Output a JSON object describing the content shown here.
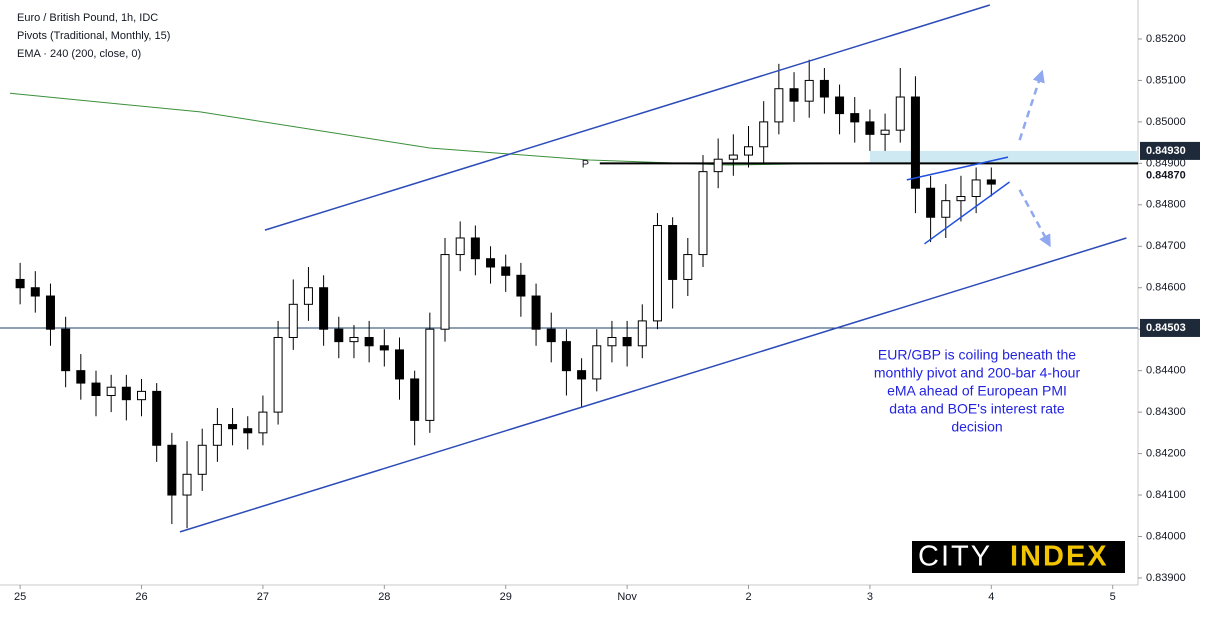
{
  "chart_data": {
    "type": "candlestick",
    "title": "Euro / British Pound, 1h, IDC",
    "subtitle": "Pivots (Traditional, Monthly, 15)",
    "xlim": [
      -2,
      221
    ],
    "ylim": [
      0.83883,
      0.85294
    ],
    "xticks": [
      {
        "value": 0,
        "label": "25"
      },
      {
        "value": 24,
        "label": "26"
      },
      {
        "value": 48,
        "label": "27"
      },
      {
        "value": 72,
        "label": "28"
      },
      {
        "value": 96,
        "label": "29"
      },
      {
        "value": 120,
        "label": "Nov"
      },
      {
        "value": 144,
        "label": "2"
      },
      {
        "value": 168,
        "label": "3"
      },
      {
        "value": 192,
        "label": "4"
      },
      {
        "value": 216,
        "label": "5"
      }
    ],
    "yticks": [
      {
        "value": 0.852,
        "label": "0.85200"
      },
      {
        "value": 0.851,
        "label": "0.85100"
      },
      {
        "value": 0.85,
        "label": "0.85000"
      },
      {
        "value": 0.849,
        "label": "0.84900"
      },
      {
        "value": 0.848,
        "label": "0.84800"
      },
      {
        "value": 0.847,
        "label": "0.84700"
      },
      {
        "value": 0.846,
        "label": "0.84600"
      },
      {
        "value": 0.845,
        "label": "0.84500"
      },
      {
        "value": 0.844,
        "label": "0.84400"
      },
      {
        "value": 0.843,
        "label": "0.84300"
      },
      {
        "value": 0.842,
        "label": "0.84200"
      },
      {
        "value": 0.841,
        "label": "0.84100"
      },
      {
        "value": 0.84,
        "label": "0.84000"
      },
      {
        "value": 0.839,
        "label": "0.83900"
      }
    ],
    "x": [
      0,
      3,
      6,
      9,
      12,
      15,
      18,
      21,
      24,
      27,
      30,
      33,
      36,
      39,
      42,
      45,
      48,
      51,
      54,
      57,
      60,
      63,
      66,
      69,
      72,
      75,
      78,
      81,
      84,
      87,
      90,
      93,
      96,
      99,
      102,
      105,
      108,
      111,
      114,
      117,
      120,
      123,
      126,
      129,
      132,
      135,
      138,
      141,
      144,
      147,
      150,
      153,
      156,
      159,
      162,
      165,
      168,
      171,
      174,
      177,
      180,
      183,
      186,
      189,
      192
    ],
    "open": [
      0.8462,
      0.846,
      0.8458,
      0.845,
      0.844,
      0.8437,
      0.8434,
      0.8436,
      0.8433,
      0.8435,
      0.8422,
      0.841,
      0.8415,
      0.8422,
      0.8427,
      0.8426,
      0.8425,
      0.843,
      0.8448,
      0.8456,
      0.846,
      0.845,
      0.8447,
      0.8448,
      0.8446,
      0.8445,
      0.8438,
      0.8428,
      0.845,
      0.8468,
      0.8472,
      0.8467,
      0.8465,
      0.8463,
      0.8458,
      0.845,
      0.8447,
      0.844,
      0.8438,
      0.8446,
      0.8448,
      0.8446,
      0.8452,
      0.8475,
      0.8462,
      0.8468,
      0.8488,
      0.8491,
      0.8492,
      0.8494,
      0.85,
      0.8508,
      0.8505,
      0.851,
      0.8506,
      0.8502,
      0.85,
      0.8497,
      0.8498,
      0.8506,
      0.8484,
      0.8477,
      0.8481,
      0.8482,
      0.8486
    ],
    "high": [
      0.8466,
      0.8464,
      0.8461,
      0.8453,
      0.8444,
      0.844,
      0.8439,
      0.8439,
      0.8438,
      0.8437,
      0.8425,
      0.8423,
      0.8426,
      0.8431,
      0.8431,
      0.8429,
      0.8434,
      0.8452,
      0.8462,
      0.8465,
      0.8463,
      0.8453,
      0.8451,
      0.8452,
      0.845,
      0.8448,
      0.844,
      0.8454,
      0.8472,
      0.8476,
      0.8475,
      0.847,
      0.8468,
      0.8466,
      0.8461,
      0.8454,
      0.845,
      0.8443,
      0.845,
      0.8452,
      0.8452,
      0.8456,
      0.8478,
      0.8477,
      0.8472,
      0.8492,
      0.8496,
      0.8497,
      0.8499,
      0.8505,
      0.8514,
      0.8512,
      0.8515,
      0.8513,
      0.8509,
      0.8506,
      0.8503,
      0.8502,
      0.8513,
      0.8511,
      0.8487,
      0.8485,
      0.8487,
      0.8489,
      0.8489
    ],
    "low": [
      0.8456,
      0.8454,
      0.8446,
      0.8436,
      0.8433,
      0.8429,
      0.843,
      0.8428,
      0.8429,
      0.8418,
      0.8403,
      0.8402,
      0.8411,
      0.8418,
      0.8422,
      0.8421,
      0.8422,
      0.8427,
      0.8445,
      0.8452,
      0.8446,
      0.8443,
      0.8443,
      0.8442,
      0.8441,
      0.8433,
      0.8422,
      0.8425,
      0.8447,
      0.8464,
      0.8463,
      0.8461,
      0.8459,
      0.8453,
      0.8446,
      0.8442,
      0.8434,
      0.8431,
      0.8435,
      0.8442,
      0.8441,
      0.8443,
      0.845,
      0.8455,
      0.8458,
      0.8465,
      0.8484,
      0.8487,
      0.8489,
      0.849,
      0.8497,
      0.85,
      0.8501,
      0.8502,
      0.8497,
      0.8495,
      0.8493,
      0.8493,
      0.8495,
      0.8478,
      0.8471,
      0.8472,
      0.8476,
      0.8478,
      0.8482
    ],
    "close": [
      0.846,
      0.8458,
      0.845,
      0.844,
      0.8437,
      0.8434,
      0.8436,
      0.8433,
      0.8435,
      0.8422,
      0.841,
      0.8415,
      0.8422,
      0.8427,
      0.8426,
      0.8425,
      0.843,
      0.8448,
      0.8456,
      0.846,
      0.845,
      0.8447,
      0.8448,
      0.8446,
      0.8445,
      0.8438,
      0.8428,
      0.845,
      0.8468,
      0.8472,
      0.8467,
      0.8465,
      0.8463,
      0.8458,
      0.845,
      0.8447,
      0.844,
      0.8438,
      0.8446,
      0.8448,
      0.8446,
      0.8452,
      0.8475,
      0.8462,
      0.8468,
      0.8488,
      0.8491,
      0.8492,
      0.8494,
      0.85,
      0.8508,
      0.8505,
      0.851,
      0.8506,
      0.8502,
      0.85,
      0.8497,
      0.8498,
      0.8506,
      0.8484,
      0.8477,
      0.8481,
      0.8482,
      0.8486,
      0.8485
    ],
    "ema": {
      "name": "EMA · 240 (200, close, 0)",
      "color": "#3a8f3a",
      "x": [
        -2,
        35.6,
        81,
        112.6,
        140,
        168
      ],
      "values": [
        0.85069,
        0.85024,
        0.84937,
        0.84908,
        0.84896,
        0.84901
      ]
    },
    "lines": [
      {
        "color": "#2b4bb8",
        "x": [
          48.4,
          191.7
        ],
        "values": [
          0.84739,
          0.85282
        ]
      },
      {
        "color": "#2b4bb8",
        "x": [
          31.6,
          218.7
        ],
        "values": [
          0.84011,
          0.8472
        ]
      },
      {
        "color": "#1f4fe0",
        "x": [
          175.3,
          195.3
        ],
        "values": [
          0.8486,
          0.84915
        ]
      },
      {
        "color": "#1f4fe0",
        "x": [
          178.8,
          195.6
        ],
        "values": [
          0.84706,
          0.84855
        ]
      },
      {
        "color": "#8fa8f0",
        "dashed": true,
        "x": [
          197.6,
          202
        ],
        "values": [
          0.84956,
          0.8512
        ]
      },
      {
        "color": "#8fa8f0",
        "dashed": true,
        "x": [
          197.6,
          203.5
        ],
        "values": [
          0.84836,
          0.84703
        ]
      }
    ],
    "pivot": {
      "name": "P",
      "value": 0.849,
      "x_start": 114.6
    },
    "zone": {
      "x_start": 168,
      "range": [
        0.849,
        0.8493
      ],
      "tag": {
        "value": 0.8493,
        "label": "0.84930"
      }
    },
    "level": {
      "value": 0.84503,
      "label": "0.84503"
    },
    "last_price": {
      "value": 0.8487,
      "label": "0.84870"
    },
    "annotation": [
      "EUR/GBP is coiling beneath the",
      "monthly pivot and 200-bar 4-hour",
      "eMA ahead of European PMI",
      "data and BOE's interest rate",
      "decision"
    ],
    "logo": [
      "CITY",
      "INDEX"
    ]
  }
}
